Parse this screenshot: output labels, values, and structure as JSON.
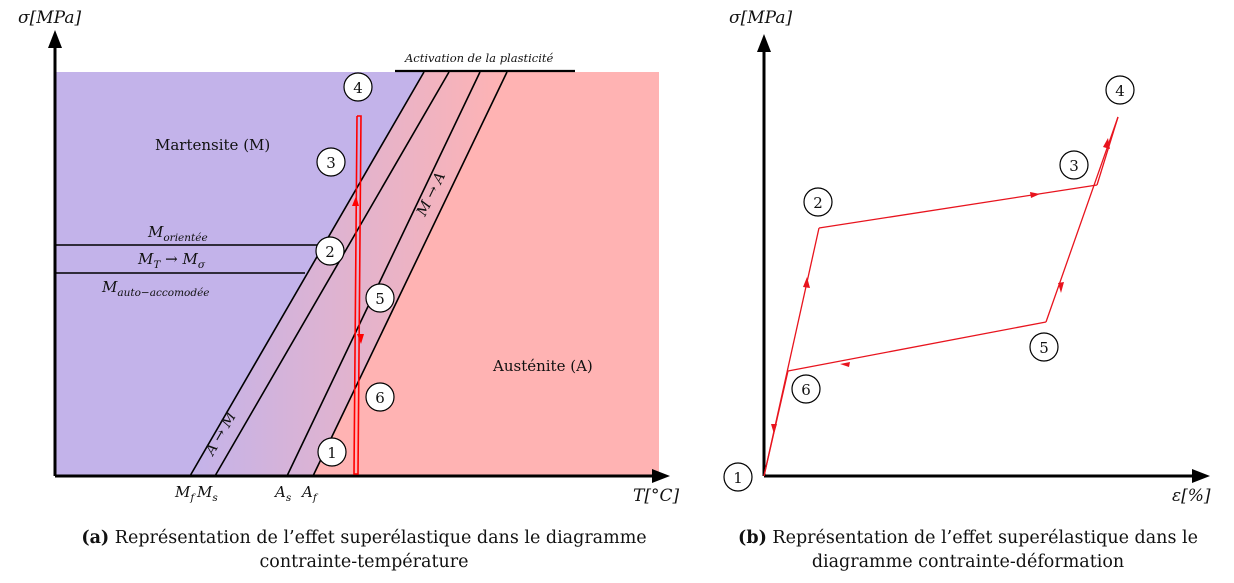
{
  "left": {
    "y_axis_label": "σ[MPa]",
    "x_axis_label": "T[°C]",
    "region_martensite": "Martensite (M)",
    "region_austenite": "Austénite (A)",
    "label_plasticity": "Activation de la plasticité",
    "label_oriented": "M",
    "label_oriented_sub": "orientée",
    "label_transform_pre": "M",
    "label_transform_sub1": "T",
    "label_transform_mid": " → M",
    "label_transform_sub2": "σ",
    "label_self_acc": "M",
    "label_self_acc_sub": "auto−accomodée",
    "line_a_to_m": "A → M",
    "line_m_to_a": "M → A",
    "tick_mf": "M",
    "tick_mf_sub": "f",
    "tick_ms": "M",
    "tick_ms_sub": "s",
    "tick_as": "A",
    "tick_as_sub": "s",
    "tick_af": "A",
    "tick_af_sub": "f",
    "points": [
      "1",
      "2",
      "3",
      "4",
      "5",
      "6"
    ],
    "colors": {
      "martensite": "#c3b3ea",
      "austenite": "#ffb3b3",
      "path": "#ff0000"
    }
  },
  "right": {
    "y_axis_label": "σ[MPa]",
    "x_axis_label": "ε[%]",
    "points": [
      "1",
      "2",
      "3",
      "4",
      "5",
      "6"
    ],
    "colors": {
      "path": "#e8141e"
    }
  },
  "captions": {
    "a_tag": "(a)",
    "a_text": "Représentation de l’effet superélastique dans le diagramme contrainte-température",
    "b_tag": "(b)",
    "b_text": "Représentation de l’effet superélastique dans le diagramme contrainte-déformation"
  }
}
